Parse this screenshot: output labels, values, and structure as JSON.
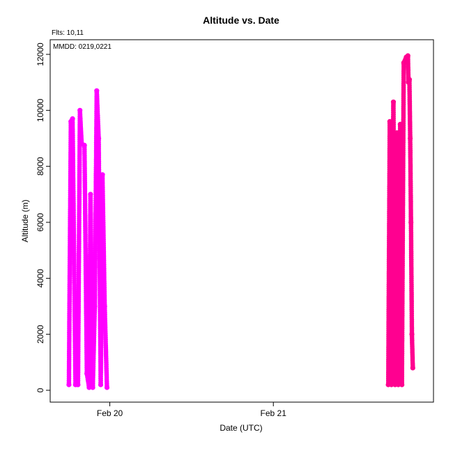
{
  "chart_data": {
    "type": "scatter",
    "title": "Altitude  vs. Date",
    "xlabel": "Date (UTC)",
    "ylabel": "Altitude (m)",
    "annotations": [
      "Flts: 10,11",
      "MMDD: 0219,0221"
    ],
    "x_axis": {
      "unit": "date (UTC)",
      "range": [
        "2019-02-19T15:15",
        "2019-02-21T23:30"
      ],
      "ticks": [
        {
          "value": "2019-02-20T00:00",
          "label": "Feb 20"
        },
        {
          "value": "2019-02-21T00:00",
          "label": "Feb 21"
        }
      ]
    },
    "ylim": [
      0,
      12000
    ],
    "y_ticks": [
      0,
      2000,
      4000,
      6000,
      8000,
      10000,
      12000
    ],
    "grid": false,
    "legend": "none",
    "series": [
      {
        "color": "#ff00ff",
        "points": [
          [
            "2019-02-19T18:00",
            200
          ],
          [
            "2019-02-19T18:17",
            9600
          ],
          [
            "2019-02-19T18:32",
            9700
          ],
          [
            "2019-02-19T18:58",
            200
          ],
          [
            "2019-02-19T19:20",
            200
          ],
          [
            "2019-02-19T19:37",
            10000
          ],
          [
            "2019-02-19T19:52",
            8800
          ],
          [
            "2019-02-19T20:17",
            8750
          ],
          [
            "2019-02-19T20:38",
            600
          ],
          [
            "2019-02-19T20:58",
            100
          ],
          [
            "2019-02-19T21:10",
            7000
          ],
          [
            "2019-02-19T21:30",
            100
          ],
          [
            "2019-02-19T21:48",
            3000
          ],
          [
            "2019-02-19T22:05",
            10700
          ],
          [
            "2019-02-19T22:22",
            9000
          ],
          [
            "2019-02-19T22:40",
            200
          ],
          [
            "2019-02-19T22:55",
            7700
          ],
          [
            "2019-02-19T23:15",
            3000
          ],
          [
            "2019-02-19T23:35",
            100
          ]
        ]
      },
      {
        "color": "#ff0090",
        "points": [
          [
            "2019-02-21T16:52",
            200
          ],
          [
            "2019-02-21T17:05",
            9600
          ],
          [
            "2019-02-21T17:20",
            200
          ],
          [
            "2019-02-21T17:37",
            10300
          ],
          [
            "2019-02-21T17:52",
            200
          ],
          [
            "2019-02-21T18:07",
            9200
          ],
          [
            "2019-02-21T18:20",
            200
          ],
          [
            "2019-02-21T18:37",
            9500
          ],
          [
            "2019-02-21T18:52",
            200
          ],
          [
            "2019-02-21T19:08",
            11700
          ],
          [
            "2019-02-21T19:30",
            11900
          ],
          [
            "2019-02-21T19:45",
            11950
          ],
          [
            "2019-02-21T19:50",
            11000
          ],
          [
            "2019-02-21T19:58",
            11100
          ],
          [
            "2019-02-21T20:05",
            9000
          ],
          [
            "2019-02-21T20:12",
            6000
          ],
          [
            "2019-02-21T20:20",
            2000
          ],
          [
            "2019-02-21T20:28",
            800
          ]
        ]
      }
    ]
  }
}
